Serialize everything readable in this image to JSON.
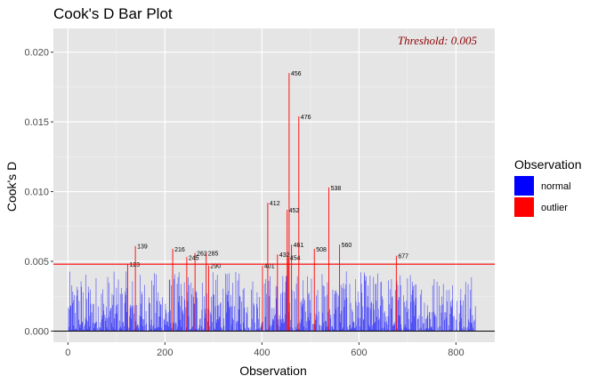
{
  "chart_data": {
    "type": "bar",
    "title": "Cook's D Bar Plot",
    "xlabel": "Observation",
    "ylabel": "Cook's D",
    "xlim": [
      -30,
      880
    ],
    "ylim": [
      -0.0008,
      0.0217
    ],
    "x_ticks": [
      0,
      200,
      400,
      600,
      800
    ],
    "y_ticks": [
      0.0,
      0.005,
      0.01,
      0.015,
      0.02
    ],
    "y_tick_labels": [
      "0.000",
      "0.005",
      "0.010",
      "0.015",
      "0.020"
    ],
    "x_tick_labels": [
      "0",
      "200",
      "400",
      "600",
      "800"
    ],
    "n_observations": 840,
    "threshold": 0.0048,
    "threshold_label": "Threshold: 0.005",
    "grid": true,
    "legend_position": "right",
    "legend": {
      "title": "Observation",
      "entries": [
        {
          "label": "normal",
          "color": "#0000ff"
        },
        {
          "label": "outlier",
          "color": "#ff0000"
        }
      ]
    },
    "outliers": [
      {
        "x": 123,
        "y": 0.0048,
        "label": "123"
      },
      {
        "x": 139,
        "y": 0.0061,
        "label": "139"
      },
      {
        "x": 216,
        "y": 0.0059,
        "label": "216"
      },
      {
        "x": 245,
        "y": 0.0053,
        "label": "245"
      },
      {
        "x": 262,
        "y": 0.0056,
        "label": "262"
      },
      {
        "x": 285,
        "y": 0.0056,
        "label": "285"
      },
      {
        "x": 290,
        "y": 0.0047,
        "label": "290"
      },
      {
        "x": 401,
        "y": 0.0047,
        "label": "401"
      },
      {
        "x": 412,
        "y": 0.0092,
        "label": "412"
      },
      {
        "x": 432,
        "y": 0.0055,
        "label": "432"
      },
      {
        "x": 452,
        "y": 0.0087,
        "label": "452"
      },
      {
        "x": 454,
        "y": 0.0053,
        "label": "454"
      },
      {
        "x": 456,
        "y": 0.0185,
        "label": "456"
      },
      {
        "x": 461,
        "y": 0.0062,
        "label": "461"
      },
      {
        "x": 476,
        "y": 0.0154,
        "label": "476"
      },
      {
        "x": 508,
        "y": 0.0059,
        "label": "508"
      },
      {
        "x": 538,
        "y": 0.0103,
        "label": "538"
      },
      {
        "x": 560,
        "y": 0.0062,
        "label": "560"
      },
      {
        "x": 677,
        "y": 0.0054,
        "label": "677"
      }
    ]
  }
}
